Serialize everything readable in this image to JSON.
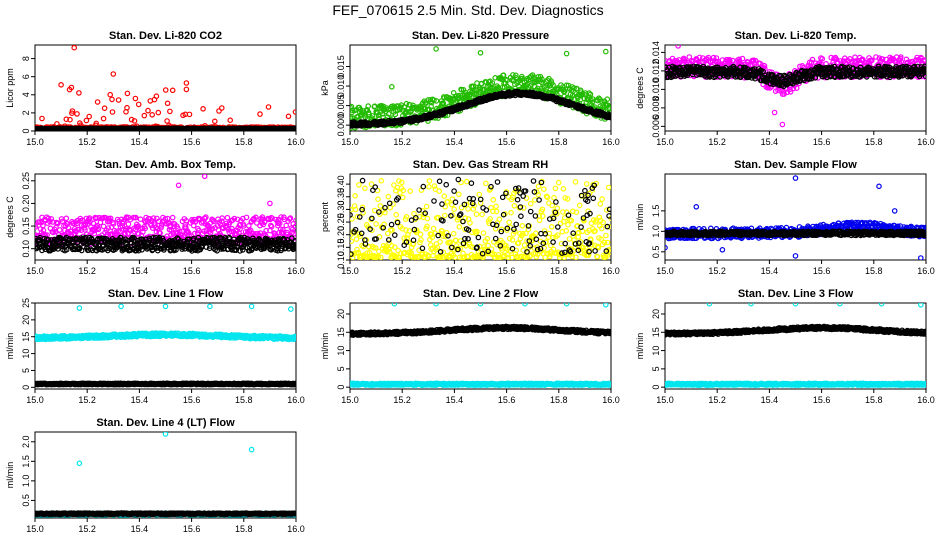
{
  "figure_title": "FEF_070615  2.5 Min. Std. Dev. Diagnostics",
  "chart_data": [
    {
      "id": "co2",
      "type": "scatter",
      "title": "Stan. Dev. Li-820 CO2",
      "ylabel": "Licor ppm",
      "xlim": [
        15.0,
        16.0
      ],
      "ylim": [
        0,
        9.5
      ],
      "xticks": [
        15.0,
        15.2,
        15.4,
        15.6,
        15.8,
        16.0
      ],
      "xticklabels": [
        "15.0",
        "15.2",
        "15.4",
        "15.6",
        "15.8",
        "16.0"
      ],
      "yticks": [
        0,
        2,
        4,
        6,
        8
      ],
      "yticklabels": [
        "0",
        "2",
        "4",
        "6",
        "8"
      ],
      "series": [
        {
          "name": "primary",
          "color": "#ff0000",
          "profile": {
            "kind": "spiky",
            "base": 0.3,
            "spread": 2.5,
            "spike_p": 0.15,
            "peaks": [
              15.15,
              15.3,
              15.5
            ]
          },
          "outliers": [
            [
              15.15,
              9.2
            ],
            [
              15.3,
              6.3
            ],
            [
              15.1,
              5.1
            ],
            [
              15.58,
              5.3
            ],
            [
              15.58,
              4.6
            ]
          ]
        },
        {
          "name": "secondary",
          "color": "#000000",
          "profile": {
            "kind": "flat",
            "base": 0.25,
            "spread": 0.1
          }
        }
      ]
    },
    {
      "id": "pressure",
      "type": "scatter",
      "title": "Stan. Dev. Li-820 Pressure",
      "ylabel": "kPa",
      "xlim": [
        15.0,
        16.0
      ],
      "ylim": [
        -0.0015,
        0.0205
      ],
      "xticks": [
        15.0,
        15.2,
        15.4,
        15.6,
        15.8,
        16.0
      ],
      "xticklabels": [
        "15.0",
        "15.2",
        "15.4",
        "15.6",
        "15.8",
        "16.0"
      ],
      "yticks": [
        0.0,
        0.005,
        0.01,
        0.015
      ],
      "yticklabels": [
        "0.000",
        "0.005",
        "0.010",
        "0.015"
      ],
      "series": [
        {
          "name": "primary",
          "color": "#22bb00",
          "profile": {
            "kind": "hump",
            "base": 0.002,
            "amp": 0.0085,
            "center": 15.65,
            "width": 0.28,
            "spread": 0.0055
          },
          "outliers": [
            [
              15.16,
              0.0098
            ],
            [
              15.33,
              0.0195
            ],
            [
              15.5,
              0.0185
            ],
            [
              15.83,
              0.0183
            ],
            [
              15.98,
              0.0188
            ]
          ]
        },
        {
          "name": "secondary",
          "color": "#000000",
          "profile": {
            "kind": "hump",
            "base": 0.0002,
            "amp": 0.0079,
            "center": 15.65,
            "width": 0.3,
            "spread": 0.001
          }
        }
      ]
    },
    {
      "id": "temp",
      "type": "scatter",
      "title": "Stan. Dev. Li-820 Temp.",
      "ylabel": "degrees C",
      "xlim": [
        15.0,
        16.0
      ],
      "ylim": [
        0.0055,
        0.0148
      ],
      "xticks": [
        15.0,
        15.2,
        15.4,
        15.6,
        15.8,
        16.0
      ],
      "xticklabels": [
        "15.0",
        "15.2",
        "15.4",
        "15.6",
        "15.8",
        "16.0"
      ],
      "yticks": [
        0.006,
        0.008,
        0.01,
        0.012,
        0.014
      ],
      "yticklabels": [
        "0.006",
        "0.008",
        "0.010",
        "0.012",
        "0.014"
      ],
      "series": [
        {
          "name": "primary",
          "color": "#ff00ff",
          "profile": {
            "kind": "band_dip",
            "base": 0.0124,
            "spread": 0.0022,
            "dip_center": 15.45,
            "dip_amp": 0.002,
            "dip_width": 0.08
          },
          "outliers": [
            [
              15.45,
              0.0062
            ],
            [
              15.42,
              0.0075
            ],
            [
              15.05,
              0.0147
            ],
            [
              15.97,
              0.0132
            ]
          ]
        },
        {
          "name": "secondary",
          "color": "#000000",
          "profile": {
            "kind": "band_dip",
            "base": 0.0119,
            "spread": 0.0012,
            "dip_center": 15.45,
            "dip_amp": 0.001,
            "dip_width": 0.08
          }
        }
      ]
    },
    {
      "id": "ambbox",
      "type": "scatter",
      "title": "Stan. Dev. Amb. Box Temp.",
      "ylabel": "degrees C",
      "xlim": [
        15.0,
        16.0
      ],
      "ylim": [
        0.075,
        0.265
      ],
      "xticks": [
        15.0,
        15.2,
        15.4,
        15.6,
        15.8,
        16.0
      ],
      "xticklabels": [
        "15.0",
        "15.2",
        "15.4",
        "15.6",
        "15.8",
        "16.0"
      ],
      "yticks": [
        0.1,
        0.15,
        0.2,
        0.25
      ],
      "yticklabels": [
        "0.10",
        "0.15",
        "0.20",
        "0.25"
      ],
      "series": [
        {
          "name": "primary",
          "color": "#ff00ff",
          "profile": {
            "kind": "flat",
            "base": 0.14,
            "spread": 0.06
          },
          "outliers": [
            [
              15.65,
              0.26
            ],
            [
              15.55,
              0.24
            ],
            [
              15.9,
              0.2
            ]
          ]
        },
        {
          "name": "secondary",
          "color": "#000000",
          "profile": {
            "kind": "flat",
            "base": 0.11,
            "spread": 0.03
          }
        }
      ]
    },
    {
      "id": "rh",
      "type": "scatter",
      "title": "Stan. Dev. Gas Stream RH",
      "ylabel": "percent",
      "xlim": [
        15.0,
        16.0
      ],
      "ylim": [
        0.1,
        0.44
      ],
      "xticks": [
        15.0,
        15.2,
        15.4,
        15.6,
        15.8,
        16.0
      ],
      "xticklabels": [
        "15.0",
        "15.2",
        "15.4",
        "15.6",
        "15.8",
        "16.0"
      ],
      "yticks": [
        0.1,
        0.15,
        0.2,
        0.25,
        0.3,
        0.35,
        0.4
      ],
      "yticklabels": [
        "0.10",
        "0.15",
        "0.20",
        "0.25",
        "0.30",
        "0.35",
        "0.40"
      ],
      "series": [
        {
          "name": "primary",
          "color": "#ffff00",
          "profile": {
            "kind": "skew_low",
            "base": 0.11,
            "spread": 0.31
          }
        },
        {
          "name": "secondary",
          "color": "#000000",
          "profile": {
            "kind": "sparse",
            "base": 0.12,
            "spread": 0.3,
            "keep": 0.25
          }
        }
      ]
    },
    {
      "id": "sampleflow",
      "type": "scatter",
      "title": "Stan. Dev. Sample Flow",
      "ylabel": "ml/min",
      "xlim": [
        15.0,
        16.0
      ],
      "ylim": [
        0.3,
        2.4
      ],
      "xticks": [
        15.0,
        15.2,
        15.4,
        15.6,
        15.8,
        16.0
      ],
      "xticklabels": [
        "15.0",
        "15.2",
        "15.4",
        "15.6",
        "15.8",
        "16.0"
      ],
      "yticks": [
        0.5,
        1.0,
        1.5
      ],
      "yticklabels": [
        "0.5",
        "1.0",
        "1.5"
      ],
      "series": [
        {
          "name": "primary",
          "color": "#0000ee",
          "profile": {
            "kind": "hump",
            "base": 0.95,
            "amp": 0.15,
            "center": 15.75,
            "width": 0.2,
            "spread": 0.25
          },
          "outliers": [
            [
              15.5,
              2.3
            ],
            [
              15.82,
              2.1
            ],
            [
              15.12,
              1.6
            ],
            [
              15.22,
              0.55
            ],
            [
              15.5,
              0.4
            ],
            [
              15.98,
              0.35
            ],
            [
              15.88,
              1.5
            ],
            [
              15.0,
              0.6
            ]
          ]
        },
        {
          "name": "secondary",
          "color": "#000000",
          "profile": {
            "kind": "flat",
            "base": 0.95,
            "spread": 0.1
          }
        }
      ]
    },
    {
      "id": "line1",
      "type": "scatter",
      "title": "Stan. Dev. Line 1 Flow",
      "ylabel": "ml/min",
      "xlim": [
        15.0,
        16.0
      ],
      "ylim": [
        -0.5,
        25
      ],
      "xticks": [
        15.0,
        15.2,
        15.4,
        15.6,
        15.8,
        16.0
      ],
      "xticklabels": [
        "15.0",
        "15.2",
        "15.4",
        "15.6",
        "15.8",
        "16.0"
      ],
      "yticks": [
        0,
        5,
        10,
        15,
        20,
        25
      ],
      "yticklabels": [
        "0",
        "5",
        "10",
        "15",
        "20",
        "25"
      ],
      "series": [
        {
          "name": "primary",
          "color": "#00e5ee",
          "profile": {
            "kind": "hump",
            "base": 14.6,
            "amp": 1.0,
            "center": 15.5,
            "width": 0.3,
            "spread": 1.0
          },
          "outliers": [
            [
              15.17,
              23.5
            ],
            [
              15.33,
              24.0
            ],
            [
              15.5,
              24.0
            ],
            [
              15.67,
              24.0
            ],
            [
              15.83,
              24.0
            ],
            [
              15.98,
              23.2
            ]
          ]
        },
        {
          "name": "secondary",
          "color": "#000000",
          "profile": {
            "kind": "flat",
            "base": 1.0,
            "spread": 0.4
          }
        }
      ]
    },
    {
      "id": "line2",
      "type": "scatter",
      "title": "Stan. Dev. Line 2 Flow",
      "ylabel": "ml/min",
      "xlim": [
        15.0,
        16.0
      ],
      "ylim": [
        -0.5,
        23
      ],
      "xticks": [
        15.0,
        15.2,
        15.4,
        15.6,
        15.8,
        16.0
      ],
      "xticklabels": [
        "15.0",
        "15.2",
        "15.4",
        "15.6",
        "15.8",
        "16.0"
      ],
      "yticks": [
        0,
        5,
        10,
        15,
        20
      ],
      "yticklabels": [
        "0",
        "5",
        "10",
        "15",
        "20"
      ],
      "series": [
        {
          "name": "primary",
          "color": "#00e5ee",
          "profile": {
            "kind": "flat",
            "base": 0.8,
            "spread": 0.5
          },
          "outliers": [
            [
              15.17,
              22.8
            ],
            [
              15.33,
              22.8
            ],
            [
              15.5,
              22.8
            ],
            [
              15.67,
              22.8
            ],
            [
              15.83,
              22.8
            ],
            [
              15.98,
              22.5
            ]
          ]
        },
        {
          "name": "secondary",
          "color": "#000000",
          "profile": {
            "kind": "hump",
            "base": 14.6,
            "amp": 1.6,
            "center": 15.6,
            "width": 0.3,
            "spread": 0.8
          }
        }
      ]
    },
    {
      "id": "line3",
      "type": "scatter",
      "title": "Stan. Dev. Line 3 Flow",
      "ylabel": "ml/min",
      "xlim": [
        15.0,
        16.0
      ],
      "ylim": [
        -0.5,
        23
      ],
      "xticks": [
        15.0,
        15.2,
        15.4,
        15.6,
        15.8,
        16.0
      ],
      "xticklabels": [
        "15.0",
        "15.2",
        "15.4",
        "15.6",
        "15.8",
        "16.0"
      ],
      "yticks": [
        0,
        5,
        10,
        15,
        20
      ],
      "yticklabels": [
        "0",
        "5",
        "10",
        "15",
        "20"
      ],
      "series": [
        {
          "name": "primary",
          "color": "#00e5ee",
          "profile": {
            "kind": "flat",
            "base": 0.8,
            "spread": 0.5
          },
          "outliers": [
            [
              15.17,
              22.8
            ],
            [
              15.33,
              22.8
            ],
            [
              15.5,
              22.8
            ],
            [
              15.67,
              22.8
            ],
            [
              15.83,
              22.8
            ],
            [
              15.98,
              22.5
            ]
          ]
        },
        {
          "name": "secondary",
          "color": "#000000",
          "profile": {
            "kind": "hump",
            "base": 14.6,
            "amp": 1.6,
            "center": 15.6,
            "width": 0.3,
            "spread": 0.8
          }
        }
      ]
    },
    {
      "id": "line4",
      "type": "scatter",
      "title": "Stan. Dev. Line 4 (LT) Flow",
      "ylabel": "ml/min",
      "xlim": [
        15.0,
        16.0
      ],
      "ylim": [
        0.05,
        2.25
      ],
      "xticks": [
        15.0,
        15.2,
        15.4,
        15.6,
        15.8,
        16.0
      ],
      "xticklabels": [
        "15.0",
        "15.2",
        "15.4",
        "15.6",
        "15.8",
        "16.0"
      ],
      "yticks": [
        0.5,
        1.0,
        1.5,
        2.0
      ],
      "yticklabels": [
        "0.5",
        "1.0",
        "1.5",
        "2.0"
      ],
      "series": [
        {
          "name": "primary",
          "color": "#00e5ee",
          "profile": {
            "kind": "flat",
            "base": 0.15,
            "spread": 0.04
          },
          "outliers": [
            [
              15.17,
              1.45
            ],
            [
              15.5,
              2.2
            ],
            [
              15.83,
              1.8
            ]
          ]
        },
        {
          "name": "secondary",
          "color": "#000000",
          "profile": {
            "kind": "flat",
            "base": 0.16,
            "spread": 0.03
          }
        }
      ]
    }
  ]
}
